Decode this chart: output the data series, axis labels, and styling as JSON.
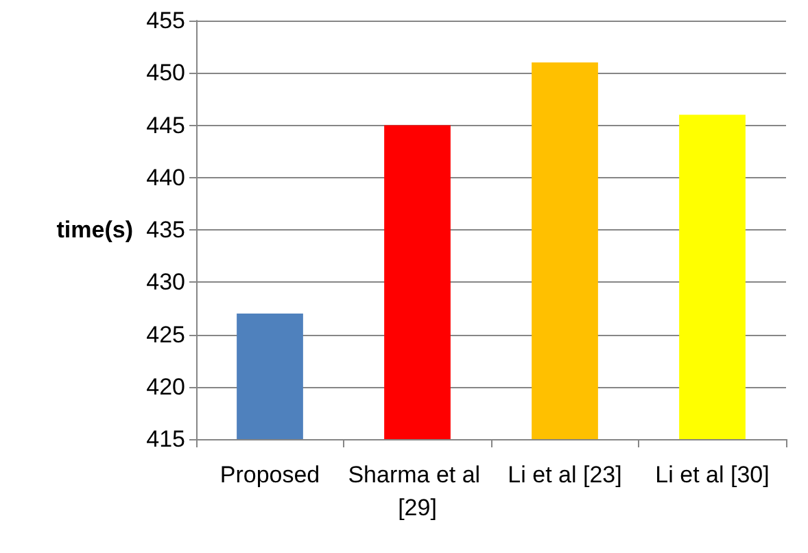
{
  "chart_data": {
    "type": "bar",
    "ylabel": "time(s)",
    "categories": [
      "Proposed",
      "Sharma et al [29]",
      "Li et al [23]",
      "Li et al [30]"
    ],
    "values": [
      427,
      445,
      451,
      446
    ],
    "colors": [
      "#4f81bd",
      "#ff0000",
      "#ffc000",
      "#ffff00"
    ],
    "ylim": [
      415,
      455
    ],
    "yticks": [
      415,
      420,
      425,
      430,
      435,
      440,
      445,
      450,
      455
    ],
    "grid": "y"
  }
}
